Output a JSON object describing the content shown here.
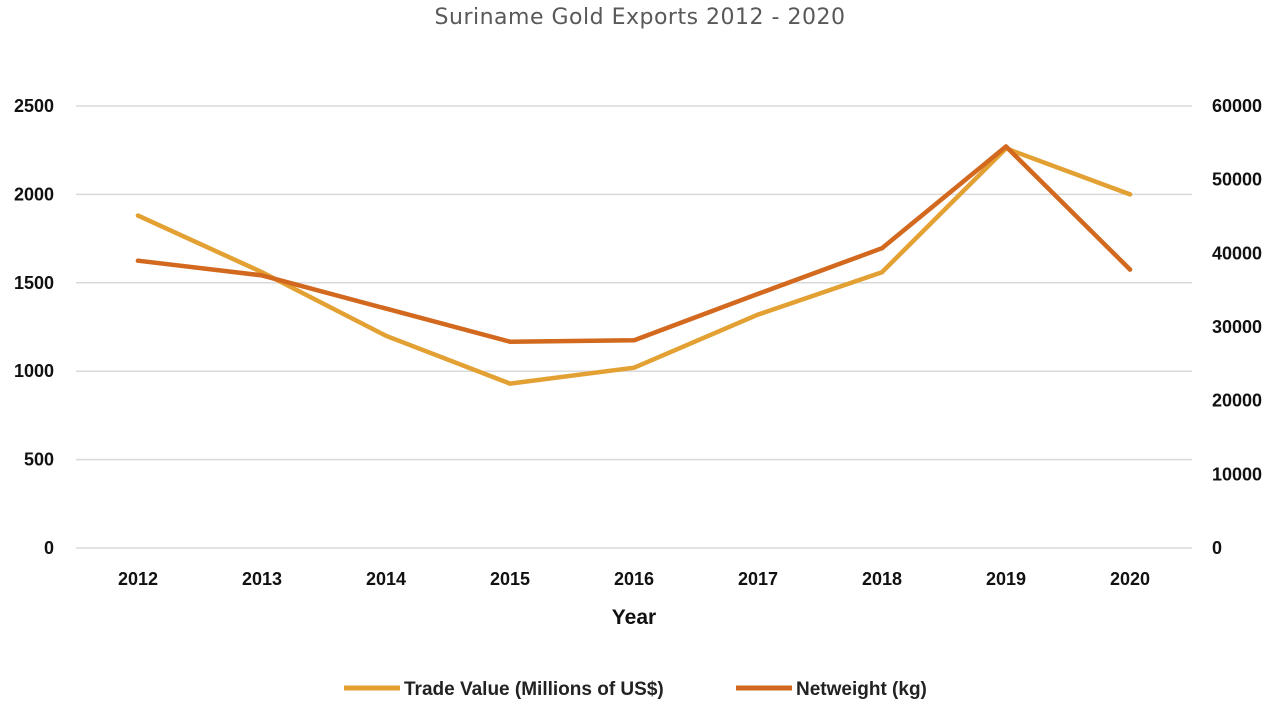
{
  "chart_data": {
    "type": "line",
    "title": "Suriname Gold Exports 2012 - 2020",
    "xlabel": "Year",
    "ylabel": "",
    "ylabel_right": "",
    "categories": [
      "2012",
      "2013",
      "2014",
      "2015",
      "2016",
      "2017",
      "2018",
      "2019",
      "2020"
    ],
    "ylim": [
      0,
      2500
    ],
    "yticks": [
      "0",
      "500",
      "1000",
      "1500",
      "2000",
      "2500"
    ],
    "ylim_right": [
      0,
      60000
    ],
    "yticks_right": [
      "0",
      "10000",
      "20000",
      "30000",
      "40000",
      "50000",
      "60000"
    ],
    "grid": true,
    "legend_position": "bottom",
    "series": [
      {
        "name": "Trade Value (Millions of US$)",
        "axis": "left",
        "color": "#E3A033",
        "values": [
          1880,
          1560,
          1200,
          930,
          1020,
          1320,
          1560,
          2260,
          2000
        ]
      },
      {
        "name": "Netweight (kg)",
        "axis": "right",
        "color": "#D2691E",
        "values": [
          39000,
          37000,
          32500,
          28000,
          28200,
          34500,
          40700,
          54500,
          37800
        ]
      }
    ]
  }
}
